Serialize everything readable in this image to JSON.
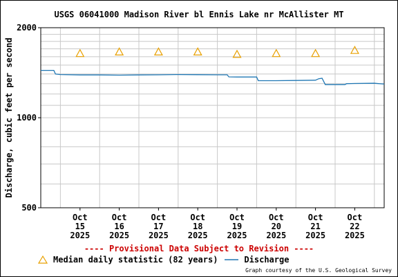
{
  "chart_data": {
    "type": "line",
    "title": "USGS 06041000 Madison River bl Ennis Lake nr McAllister MT",
    "ylabel": "Discharge, cubic feet per second",
    "y_scale": "log",
    "ylim": [
      500,
      2000
    ],
    "y_ticks": [
      {
        "value": 500,
        "label": "500"
      },
      {
        "value": 1000,
        "label": "1000"
      },
      {
        "value": 2000,
        "label": "2000"
      }
    ],
    "xlim": [
      "2025-10-14T12:00",
      "2025-10-23T06:00"
    ],
    "x_ticks": [
      {
        "date": "2025-10-15T12:00",
        "lines": [
          "Oct",
          "15",
          "2025"
        ]
      },
      {
        "date": "2025-10-16T12:00",
        "lines": [
          "Oct",
          "16",
          "2025"
        ]
      },
      {
        "date": "2025-10-17T12:00",
        "lines": [
          "Oct",
          "17",
          "2025"
        ]
      },
      {
        "date": "2025-10-18T12:00",
        "lines": [
          "Oct",
          "18",
          "2025"
        ]
      },
      {
        "date": "2025-10-19T12:00",
        "lines": [
          "Oct",
          "19",
          "2025"
        ]
      },
      {
        "date": "2025-10-20T12:00",
        "lines": [
          "Oct",
          "20",
          "2025"
        ]
      },
      {
        "date": "2025-10-21T12:00",
        "lines": [
          "Oct",
          "21",
          "2025"
        ]
      },
      {
        "date": "2025-10-22T12:00",
        "lines": [
          "Oct",
          "22",
          "2025"
        ]
      }
    ],
    "grid": true,
    "colors": {
      "discharge": "#1f77b4",
      "median": "#e8a000",
      "provisional": "#cc0000"
    },
    "series": [
      {
        "name": "Discharge",
        "kind": "line",
        "points": [
          {
            "x": "2025-10-14T12:00",
            "y": 1440
          },
          {
            "x": "2025-10-14T20:00",
            "y": 1440
          },
          {
            "x": "2025-10-14T21:00",
            "y": 1400
          },
          {
            "x": "2025-10-15T00:00",
            "y": 1395
          },
          {
            "x": "2025-10-15T12:00",
            "y": 1390
          },
          {
            "x": "2025-10-16T00:00",
            "y": 1390
          },
          {
            "x": "2025-10-16T12:00",
            "y": 1388
          },
          {
            "x": "2025-10-17T00:00",
            "y": 1390
          },
          {
            "x": "2025-10-17T12:00",
            "y": 1392
          },
          {
            "x": "2025-10-18T00:00",
            "y": 1395
          },
          {
            "x": "2025-10-18T12:00",
            "y": 1393
          },
          {
            "x": "2025-10-19T00:00",
            "y": 1392
          },
          {
            "x": "2025-10-19T06:00",
            "y": 1392
          },
          {
            "x": "2025-10-19T07:00",
            "y": 1370
          },
          {
            "x": "2025-10-19T12:00",
            "y": 1368
          },
          {
            "x": "2025-10-20T00:00",
            "y": 1368
          },
          {
            "x": "2025-10-20T01:00",
            "y": 1330
          },
          {
            "x": "2025-10-20T12:00",
            "y": 1330
          },
          {
            "x": "2025-10-21T00:00",
            "y": 1332
          },
          {
            "x": "2025-10-21T12:00",
            "y": 1335
          },
          {
            "x": "2025-10-21T14:00",
            "y": 1350
          },
          {
            "x": "2025-10-21T16:00",
            "y": 1355
          },
          {
            "x": "2025-10-21T18:00",
            "y": 1290
          },
          {
            "x": "2025-10-22T00:00",
            "y": 1290
          },
          {
            "x": "2025-10-22T06:00",
            "y": 1290
          },
          {
            "x": "2025-10-22T07:00",
            "y": 1300
          },
          {
            "x": "2025-10-22T12:00",
            "y": 1302
          },
          {
            "x": "2025-10-23T00:00",
            "y": 1304
          },
          {
            "x": "2025-10-23T06:00",
            "y": 1296
          }
        ]
      },
      {
        "name": "Median daily statistic (82 years)",
        "kind": "marker",
        "points": [
          {
            "x": "2025-10-15T12:00",
            "y": 1640
          },
          {
            "x": "2025-10-16T12:00",
            "y": 1660
          },
          {
            "x": "2025-10-17T12:00",
            "y": 1660
          },
          {
            "x": "2025-10-18T12:00",
            "y": 1660
          },
          {
            "x": "2025-10-19T12:00",
            "y": 1630
          },
          {
            "x": "2025-10-20T12:00",
            "y": 1640
          },
          {
            "x": "2025-10-21T12:00",
            "y": 1640
          },
          {
            "x": "2025-10-22T12:00",
            "y": 1680
          }
        ]
      }
    ]
  },
  "provisional_note": "---- Provisional Data Subject to Revision ----",
  "legend": {
    "median": "Median daily statistic (82 years)",
    "discharge": "Discharge"
  },
  "credit": "Graph courtesy of the U.S. Geological Survey"
}
